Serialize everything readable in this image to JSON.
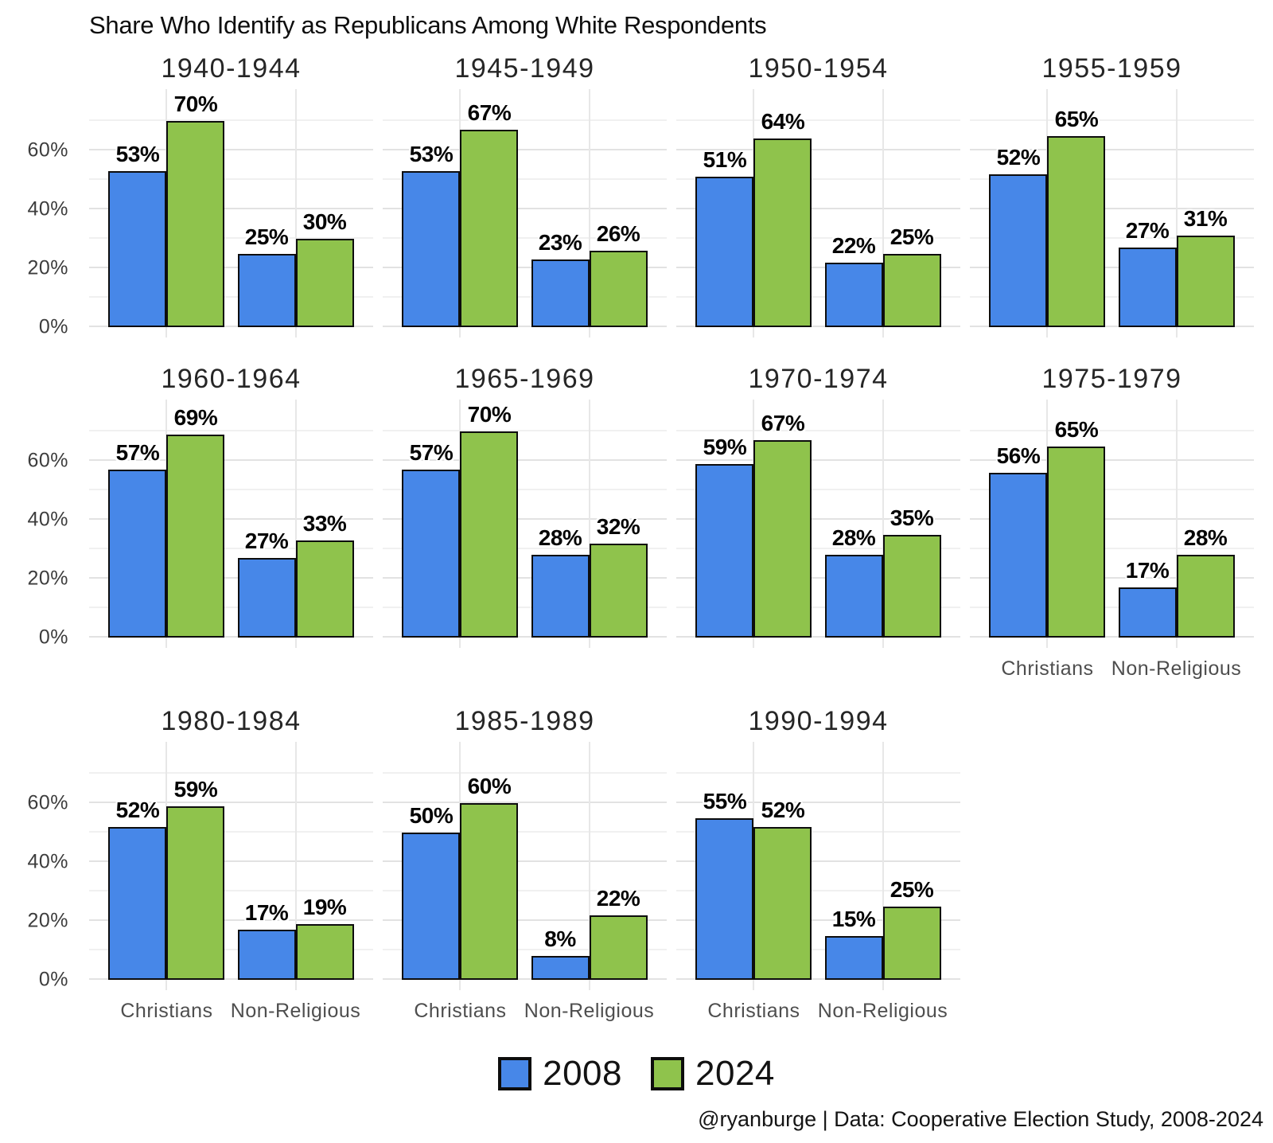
{
  "title": "Share Who Identify as Republicans Among White Respondents",
  "attribution": "@ryanburge | Data: Cooperative Election Study, 2008-2024",
  "legend": [
    {
      "label": "2008",
      "color": "#4787e8"
    },
    {
      "label": "2024",
      "color": "#8fc34c"
    }
  ],
  "colors": {
    "series_2008": "#4787e8",
    "series_2024": "#8fc34c",
    "bar_outline": "#0d0d0d",
    "grid_major": "#e2e2e2",
    "grid_minor": "#f0f0f0",
    "grid_vertical": "#e7e7e7",
    "axis_text": "#3d3d3d",
    "category_text": "#4e4e4e",
    "background": "#ffffff"
  },
  "chart_data": {
    "type": "bar",
    "title": "Share Who Identify as Republicans Among White Respondents",
    "categories": [
      "Christians",
      "Non-Religious"
    ],
    "series": [
      "2008",
      "2024"
    ],
    "unit": "%",
    "ylim": [
      0,
      78
    ],
    "yticks": [
      0,
      20,
      40,
      60
    ],
    "grid_values": [
      0,
      10,
      20,
      30,
      40,
      50,
      60,
      70
    ],
    "grid": true,
    "legend_position": "bottom",
    "layout": {
      "columns": 4
    },
    "facets": [
      {
        "title": "1940-1944",
        "values": {
          "Christians": [
            53,
            70
          ],
          "Non-Religious": [
            25,
            30
          ]
        }
      },
      {
        "title": "1945-1949",
        "values": {
          "Christians": [
            53,
            67
          ],
          "Non-Religious": [
            23,
            26
          ]
        }
      },
      {
        "title": "1950-1954",
        "values": {
          "Christians": [
            51,
            64
          ],
          "Non-Religious": [
            22,
            25
          ]
        }
      },
      {
        "title": "1955-1959",
        "values": {
          "Christians": [
            52,
            65
          ],
          "Non-Religious": [
            27,
            31
          ]
        }
      },
      {
        "title": "1960-1964",
        "values": {
          "Christians": [
            57,
            69
          ],
          "Non-Religious": [
            27,
            33
          ]
        }
      },
      {
        "title": "1965-1969",
        "values": {
          "Christians": [
            57,
            70
          ],
          "Non-Religious": [
            28,
            32
          ]
        }
      },
      {
        "title": "1970-1974",
        "values": {
          "Christians": [
            59,
            67
          ],
          "Non-Religious": [
            28,
            35
          ]
        }
      },
      {
        "title": "1975-1979",
        "values": {
          "Christians": [
            56,
            65
          ],
          "Non-Religious": [
            17,
            28
          ]
        }
      },
      {
        "title": "1980-1984",
        "values": {
          "Christians": [
            52,
            59
          ],
          "Non-Religious": [
            17,
            19
          ]
        }
      },
      {
        "title": "1985-1989",
        "values": {
          "Christians": [
            50,
            60
          ],
          "Non-Religious": [
            8,
            22
          ]
        }
      },
      {
        "title": "1990-1994",
        "values": {
          "Christians": [
            55,
            52
          ],
          "Non-Religious": [
            15,
            25
          ]
        }
      }
    ]
  }
}
